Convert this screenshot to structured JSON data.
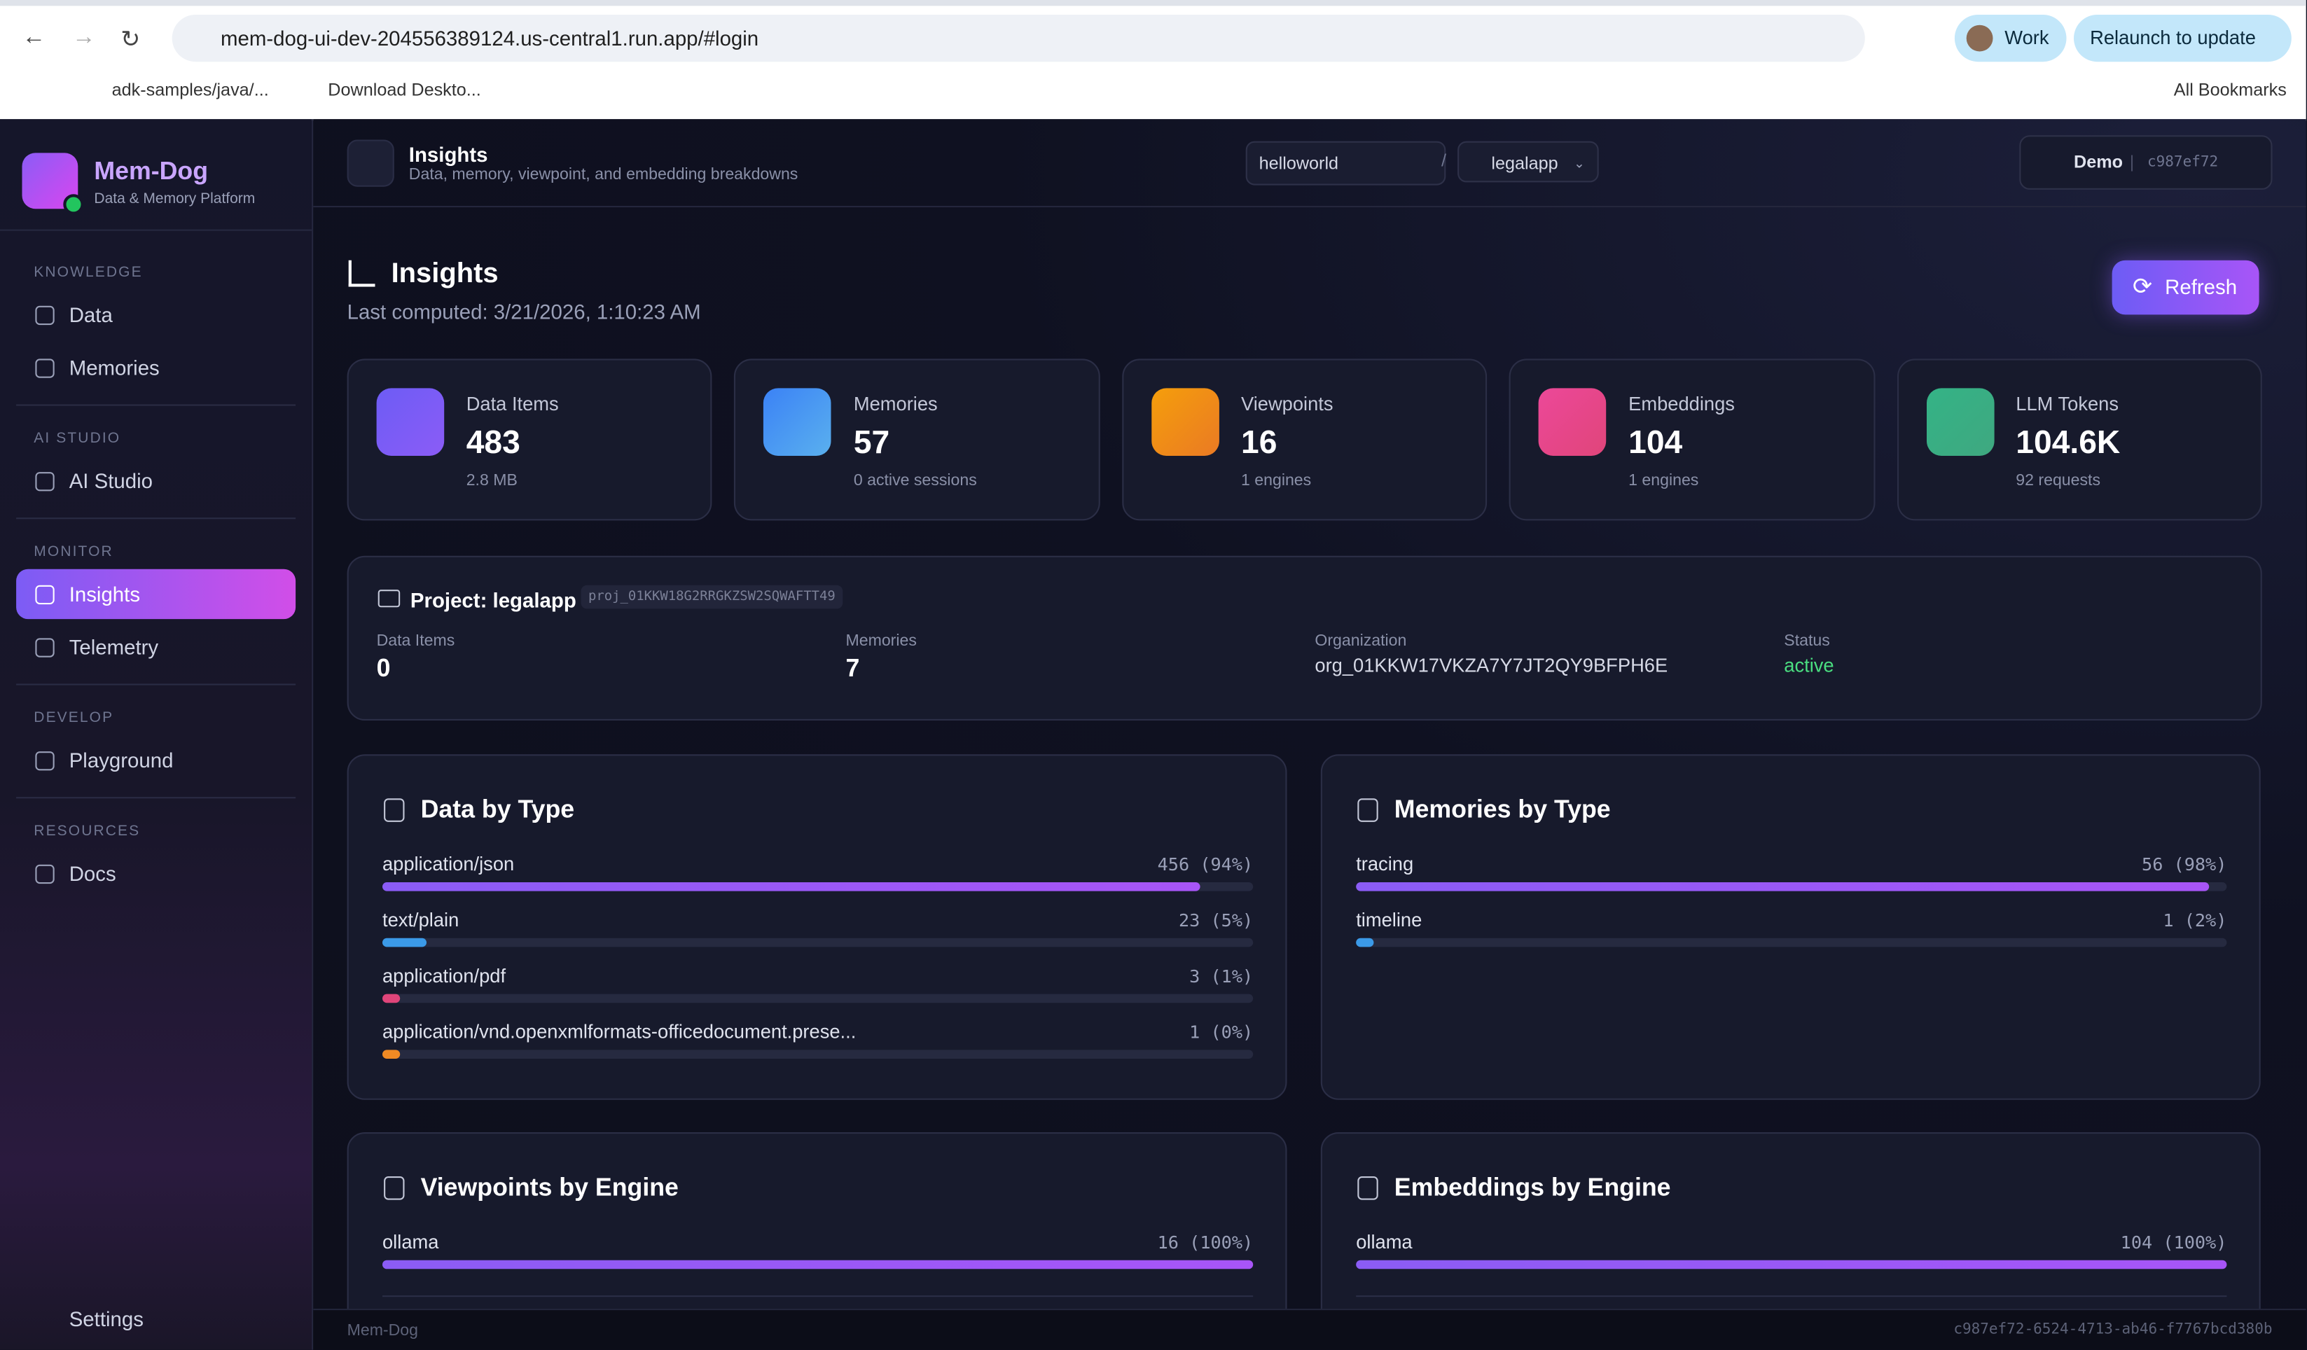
{
  "browser": {
    "url": "mem-dog-ui-dev-204556389124.us-central1.run.app/#login",
    "profile": "Work",
    "relaunch": "Relaunch to update",
    "bookmarks": [
      "adk-samples/java/...",
      "Download Deskto..."
    ],
    "all_bookmarks": "All Bookmarks"
  },
  "sidebar": {
    "brand": "Mem-Dog",
    "tagline": "Data & Memory Platform",
    "sections": [
      {
        "title": "KNOWLEDGE",
        "items": [
          "Data",
          "Memories"
        ]
      },
      {
        "title": "AI STUDIO",
        "items": [
          "AI Studio"
        ]
      },
      {
        "title": "MONITOR",
        "items": [
          "Insights",
          "Telemetry"
        ]
      },
      {
        "title": "DEVELOP",
        "items": [
          "Playground"
        ]
      },
      {
        "title": "RESOURCES",
        "items": [
          "Docs"
        ]
      }
    ],
    "settings": "Settings"
  },
  "header": {
    "title": "Insights",
    "subtitle": "Data, memory, viewpoint, and embedding breakdowns",
    "org": "helloworld",
    "separator": "/",
    "project": "legalapp",
    "user": "Demo",
    "user_id": "c987ef72"
  },
  "page": {
    "title": "Insights",
    "last_computed": "Last computed: 3/21/2026, 1:10:23 AM",
    "refresh": "Refresh"
  },
  "stats": [
    {
      "label": "Data Items",
      "value": "483",
      "sub": "2.8 MB"
    },
    {
      "label": "Memories",
      "value": "57",
      "sub": "0 active sessions"
    },
    {
      "label": "Viewpoints",
      "value": "16",
      "sub": "1 engines"
    },
    {
      "label": "Embeddings",
      "value": "104",
      "sub": "1 engines"
    },
    {
      "label": "LLM Tokens",
      "value": "104.6K",
      "sub": "92 requests"
    }
  ],
  "project": {
    "title": "Project: legalapp",
    "id": "proj_01KKW18G2RRGKZSW2SQWAFTT49",
    "fields": [
      {
        "label": "Data Items",
        "value": "0"
      },
      {
        "label": "Memories",
        "value": "7"
      },
      {
        "label": "Organization",
        "value": "org_01KKW17VKZA7Y7JT2QY9BFPH6E"
      },
      {
        "label": "Status",
        "value": "active"
      }
    ]
  },
  "breakdowns": [
    {
      "title": "Data by Type",
      "categories": [
        "application/json",
        "text/plain",
        "application/pdf",
        "application/vnd.openxmlformats-officedocument.prese..."
      ],
      "values": [
        94,
        5,
        1,
        0
      ],
      "value_labels": [
        "456 (94%)",
        "23 (5%)",
        "3 (1%)",
        "1 (0%)"
      ],
      "colors": [
        "#8b5cf6",
        "#3b9ae8",
        "#e0457a",
        "#f08a24"
      ]
    },
    {
      "title": "Memories by Type",
      "categories": [
        "tracing",
        "timeline"
      ],
      "values": [
        98,
        2
      ],
      "value_labels": [
        "56 (98%)",
        "1 (2%)"
      ],
      "colors": [
        "#8b5cf6",
        "#3b9ae8"
      ]
    },
    {
      "title": "Viewpoints by Engine",
      "categories": [
        "ollama"
      ],
      "values": [
        100
      ],
      "value_labels": [
        "16 (100%)"
      ],
      "colors": [
        "#8b5cf6"
      ]
    },
    {
      "title": "Embeddings by Engine",
      "categories": [
        "ollama"
      ],
      "values": [
        100
      ],
      "value_labels": [
        "104 (100%)"
      ],
      "colors": [
        "#8b5cf6"
      ]
    }
  ],
  "footer": {
    "left": "Mem-Dog",
    "right": "c987ef72-6524-4713-ab46-f7767bcd380b"
  }
}
